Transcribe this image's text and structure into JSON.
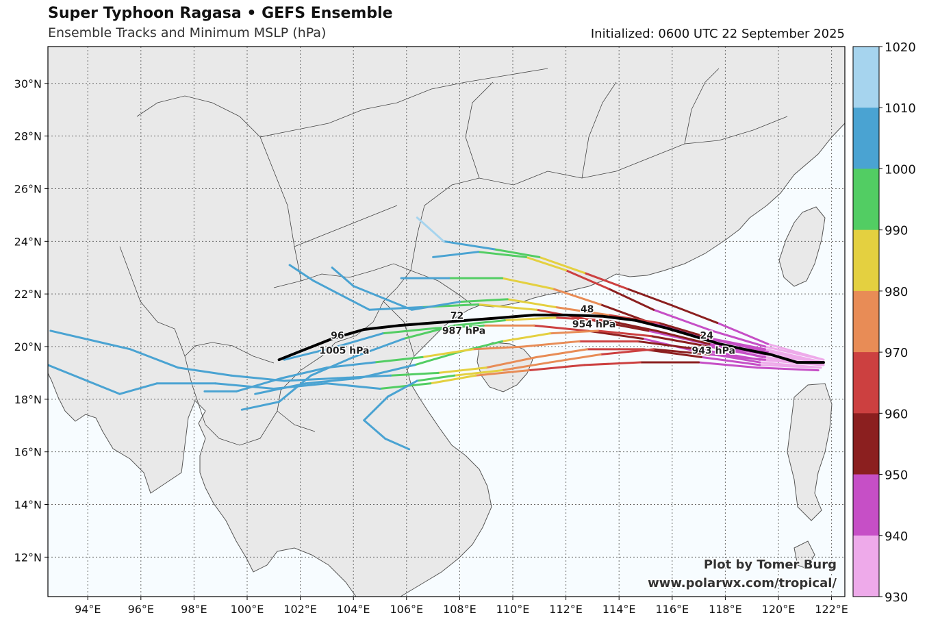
{
  "header": {
    "title": "Super Typhoon Ragasa • GEFS Ensemble",
    "subtitle": "Ensemble Tracks and Minimum MSLP (hPa)",
    "initialized": "Initialized: 0600 UTC 22 September 2025"
  },
  "credit": {
    "line1": "Plot by Tomer Burg",
    "line2": "www.polarwx.com/tropical/"
  },
  "map": {
    "lon_range": [
      92.5,
      122.5
    ],
    "lat_range": [
      10.5,
      31.4
    ],
    "lon_ticks": [
      "94°E",
      "96°E",
      "98°E",
      "100°E",
      "102°E",
      "104°E",
      "106°E",
      "108°E",
      "110°E",
      "112°E",
      "114°E",
      "116°E",
      "118°E",
      "120°E",
      "122°E"
    ],
    "lat_ticks": [
      "12°N",
      "14°N",
      "16°N",
      "18°N",
      "20°N",
      "22°N",
      "24°N",
      "26°N",
      "28°N",
      "30°N"
    ],
    "ocean_color": "#f7fcff",
    "land_color": "#e9e9e9",
    "grid": "dotted"
  },
  "colorbar": {
    "labels": [
      "1020",
      "1010",
      "1000",
      "990",
      "980",
      "970",
      "960",
      "950",
      "940",
      "930"
    ],
    "bins": [
      {
        "range": [
          1010,
          1020
        ],
        "color": "#a6d4ee"
      },
      {
        "range": [
          1000,
          1010
        ],
        "color": "#4aa3d2"
      },
      {
        "range": [
          990,
          1000
        ],
        "color": "#52cd63"
      },
      {
        "range": [
          980,
          990
        ],
        "color": "#e4d040"
      },
      {
        "range": [
          970,
          980
        ],
        "color": "#e88c56"
      },
      {
        "range": [
          960,
          970
        ],
        "color": "#cc4040"
      },
      {
        "range": [
          950,
          960
        ],
        "color": "#8b1f1f"
      },
      {
        "range": [
          940,
          950
        ],
        "color": "#c64fc6"
      },
      {
        "range": [
          930,
          940
        ],
        "color": "#eeaaea"
      }
    ]
  },
  "ensemble_mean": {
    "color": "#000000",
    "track": [
      [
        121.7,
        19.4
      ],
      [
        120.7,
        19.4
      ],
      [
        119.7,
        19.7
      ],
      [
        118.7,
        19.9
      ],
      [
        117.8,
        20.1
      ],
      [
        116.8,
        20.4
      ],
      [
        115.8,
        20.7
      ],
      [
        114.6,
        21.0
      ],
      [
        113.4,
        21.15
      ],
      [
        112.0,
        21.2
      ],
      [
        110.8,
        21.2
      ],
      [
        109.6,
        21.1
      ],
      [
        108.3,
        21.0
      ],
      [
        107.0,
        20.9
      ],
      [
        105.7,
        20.8
      ],
      [
        104.4,
        20.65
      ],
      [
        103.2,
        20.3
      ],
      [
        102.2,
        19.9
      ],
      [
        101.2,
        19.5
      ]
    ],
    "labels": [
      {
        "hour": "24",
        "pressure": "943 hPa",
        "lon": 117.3,
        "lat": 20.2
      },
      {
        "hour": "48",
        "pressure": "954 hPa",
        "lon": 112.8,
        "lat": 21.2
      },
      {
        "hour": "72",
        "pressure": "987 hPa",
        "lon": 107.9,
        "lat": 20.95
      },
      {
        "hour": "96",
        "pressure": "1005 hPa",
        "lon": 103.4,
        "lat": 20.2
      }
    ]
  },
  "ensemble_tracks": [
    {
      "member": 1,
      "points": [
        [
          121.7,
          19.5,
          932
        ],
        [
          119.5,
          20.0,
          938
        ],
        [
          117.5,
          20.6,
          942
        ],
        [
          115.3,
          21.4,
          948
        ],
        [
          113.6,
          22.2,
          958
        ],
        [
          112.0,
          22.9,
          972
        ],
        [
          110.5,
          23.4,
          988
        ],
        [
          108.7,
          23.6,
          1000
        ],
        [
          107.0,
          23.4,
          1004
        ]
      ]
    },
    {
      "member": 2,
      "points": [
        [
          121.7,
          19.4,
          933
        ],
        [
          119.6,
          19.8,
          940
        ],
        [
          117.4,
          20.3,
          945
        ],
        [
          115.2,
          20.9,
          952
        ],
        [
          113.3,
          21.6,
          962
        ],
        [
          111.5,
          22.2,
          978
        ],
        [
          109.6,
          22.6,
          992
        ],
        [
          107.6,
          22.6,
          1003
        ],
        [
          105.8,
          22.6,
          1006
        ]
      ]
    },
    {
      "member": 3,
      "points": [
        [
          121.7,
          19.3,
          934
        ],
        [
          119.4,
          19.6,
          941
        ],
        [
          117.3,
          20.1,
          946
        ],
        [
          115.1,
          20.6,
          953
        ],
        [
          113.0,
          21.0,
          963
        ],
        [
          110.9,
          21.4,
          976
        ],
        [
          108.7,
          21.6,
          990
        ],
        [
          106.6,
          21.5,
          1000
        ],
        [
          104.6,
          21.4,
          1004
        ],
        [
          102.5,
          22.5,
          1005
        ],
        [
          101.6,
          23.1,
          1006
        ]
      ]
    },
    {
      "member": 4,
      "points": [
        [
          121.7,
          19.4,
          935
        ],
        [
          119.5,
          19.9,
          942
        ],
        [
          117.5,
          20.3,
          947
        ],
        [
          115.5,
          20.9,
          955
        ],
        [
          113.6,
          21.2,
          966
        ],
        [
          111.6,
          21.5,
          978
        ],
        [
          109.8,
          21.8,
          992
        ],
        [
          108.0,
          21.7,
          1001
        ],
        [
          106.2,
          21.4,
          1004
        ],
        [
          104.0,
          22.3,
          1006
        ],
        [
          103.2,
          23.0,
          1008
        ]
      ]
    },
    {
      "member": 5,
      "points": [
        [
          121.6,
          19.2,
          934
        ],
        [
          119.3,
          19.4,
          939
        ],
        [
          117.0,
          19.8,
          944
        ],
        [
          114.9,
          20.3,
          951
        ],
        [
          112.8,
          20.6,
          960
        ],
        [
          110.8,
          20.8,
          972
        ],
        [
          108.9,
          20.8,
          986
        ],
        [
          107.1,
          20.7,
          997
        ],
        [
          105.1,
          20.5,
          1002
        ],
        [
          103.4,
          20.0,
          1004
        ],
        [
          101.4,
          19.5,
          1006
        ]
      ]
    },
    {
      "member": 6,
      "points": [
        [
          121.7,
          19.3,
          936
        ],
        [
          119.5,
          19.6,
          942
        ],
        [
          117.4,
          20.0,
          948
        ],
        [
          115.2,
          20.4,
          956
        ],
        [
          113.2,
          20.6,
          965
        ],
        [
          111.4,
          20.5,
          976
        ],
        [
          109.6,
          20.2,
          986
        ],
        [
          108.0,
          19.8,
          995
        ],
        [
          106.3,
          19.3,
          1000
        ],
        [
          104.2,
          18.8,
          1004
        ],
        [
          102.2,
          18.6,
          1005
        ],
        [
          100.3,
          18.2,
          1006
        ]
      ]
    },
    {
      "member": 7,
      "points": [
        [
          121.6,
          19.2,
          935
        ],
        [
          119.3,
          19.3,
          943
        ],
        [
          117.1,
          19.6,
          949
        ],
        [
          114.9,
          19.9,
          957
        ],
        [
          112.8,
          19.9,
          967
        ],
        [
          110.9,
          19.6,
          975
        ],
        [
          109.0,
          19.2,
          984
        ],
        [
          107.2,
          19.0,
          992
        ],
        [
          105.4,
          18.9,
          1000
        ],
        [
          103.4,
          18.8,
          1003
        ],
        [
          101.4,
          18.7,
          1005
        ],
        [
          99.4,
          18.9,
          1006
        ],
        [
          97.4,
          19.2,
          1006
        ],
        [
          95.6,
          19.9,
          1006
        ],
        [
          92.6,
          20.6,
          1007
        ]
      ]
    },
    {
      "member": 8,
      "points": [
        [
          121.5,
          19.1,
          937
        ],
        [
          119.2,
          19.2,
          944
        ],
        [
          117.0,
          19.4,
          950
        ],
        [
          114.8,
          19.4,
          958
        ],
        [
          112.7,
          19.3,
          966
        ],
        [
          110.6,
          19.1,
          972
        ],
        [
          108.6,
          18.9,
          980
        ],
        [
          106.9,
          18.6,
          990
        ],
        [
          105.0,
          18.4,
          998
        ],
        [
          103.0,
          18.6,
          1003
        ],
        [
          101.0,
          18.4,
          1005
        ],
        [
          98.8,
          18.6,
          1006
        ],
        [
          96.6,
          18.6,
          1007
        ],
        [
          95.2,
          18.2,
          1007
        ],
        [
          92.5,
          19.3,
          1007
        ]
      ]
    },
    {
      "member": 9,
      "points": [
        [
          121.7,
          19.5,
          933
        ],
        [
          119.6,
          20.1,
          939
        ],
        [
          117.7,
          20.9,
          946
        ],
        [
          115.9,
          21.6,
          954
        ],
        [
          114.3,
          22.2,
          963
        ],
        [
          112.7,
          22.8,
          975
        ],
        [
          111.0,
          23.4,
          990
        ],
        [
          109.3,
          23.7,
          1000
        ],
        [
          107.4,
          24.0,
          1010
        ],
        [
          106.4,
          24.9,
          1012
        ]
      ]
    },
    {
      "member": 10,
      "points": [
        [
          121.6,
          19.3,
          936
        ],
        [
          119.3,
          19.5,
          943
        ],
        [
          117.0,
          19.9,
          950
        ],
        [
          114.7,
          20.2,
          958
        ],
        [
          112.5,
          20.2,
          966
        ],
        [
          110.4,
          20.0,
          974
        ],
        [
          108.5,
          19.9,
          982
        ],
        [
          106.6,
          19.6,
          992
        ],
        [
          104.8,
          19.4,
          999
        ],
        [
          103.0,
          19.2,
          1003
        ],
        [
          101.3,
          18.8,
          1005
        ],
        [
          99.6,
          18.3,
          1006
        ],
        [
          98.4,
          18.3,
          1006
        ]
      ]
    },
    {
      "member": 11,
      "points": [
        [
          121.6,
          19.4,
          934
        ],
        [
          119.5,
          19.7,
          941
        ],
        [
          117.4,
          20.1,
          947
        ],
        [
          115.4,
          20.6,
          955
        ],
        [
          113.5,
          21.0,
          964
        ],
        [
          111.6,
          21.1,
          975
        ],
        [
          109.7,
          21.0,
          988
        ],
        [
          107.8,
          20.8,
          996
        ],
        [
          105.9,
          20.3,
          1001
        ],
        [
          104.0,
          19.6,
          1003
        ],
        [
          102.4,
          18.9,
          1005
        ],
        [
          101.2,
          17.9,
          1006
        ],
        [
          99.8,
          17.6,
          1007
        ]
      ]
    },
    {
      "member": 12,
      "points": [
        [
          121.7,
          19.3,
          935
        ],
        [
          119.5,
          19.5,
          943
        ],
        [
          117.4,
          19.7,
          951
        ],
        [
          115.3,
          19.9,
          959
        ],
        [
          113.3,
          19.7,
          967
        ],
        [
          111.4,
          19.4,
          974
        ],
        [
          109.6,
          19.1,
          982
        ],
        [
          107.8,
          18.9,
          990
        ],
        [
          106.4,
          18.7,
          998
        ],
        [
          105.3,
          18.1,
          1003
        ],
        [
          104.4,
          17.2,
          1005
        ],
        [
          105.2,
          16.5,
          1006
        ],
        [
          106.1,
          16.1,
          1007
        ]
      ]
    }
  ]
}
